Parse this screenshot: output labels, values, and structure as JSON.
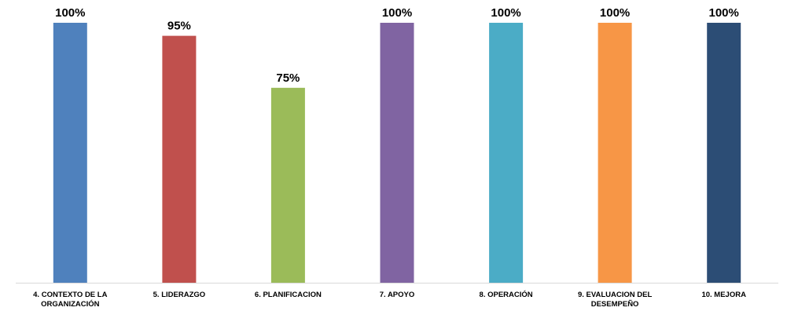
{
  "chart_data": {
    "type": "bar",
    "title": "",
    "xlabel": "",
    "ylabel": "",
    "ylim": [
      0,
      100
    ],
    "grid": false,
    "legend": "none",
    "categories": [
      [
        "4. CONTEXTO DE LA",
        "ORGANIZACIÓN"
      ],
      [
        "5. LIDERAZGO"
      ],
      [
        "6. PLANIFICACION"
      ],
      [
        "7. APOYO"
      ],
      [
        "8. OPERACIÓN"
      ],
      [
        "9. EVALUACION DEL",
        "DESEMPEÑO"
      ],
      [
        "10. MEJORA"
      ]
    ],
    "values": [
      100,
      95,
      75,
      100,
      100,
      100,
      100
    ],
    "value_labels": [
      "100%",
      "95%",
      "75%",
      "100%",
      "100%",
      "100%",
      "100%"
    ],
    "colors": [
      "#4f81bd",
      "#c0504d",
      "#9bbb59",
      "#8064a2",
      "#4bacc6",
      "#f79646",
      "#2c4d75"
    ],
    "axis_color": "#d9d9d9"
  }
}
